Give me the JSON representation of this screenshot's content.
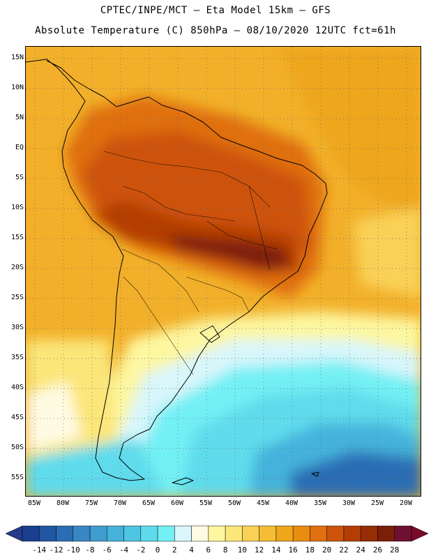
{
  "header": {
    "line1": "CPTEC/INPE/MCT —  Eta Model 15km — GFS",
    "line2": "Absolute Temperature (C) 850hPa — 08/10/2020 12UTC fct=61h"
  },
  "axes": {
    "lat_labels": [
      "15N",
      "10N",
      "5N",
      "EQ",
      "5S",
      "10S",
      "15S",
      "20S",
      "25S",
      "30S",
      "35S",
      "40S",
      "45S",
      "50S",
      "55S"
    ],
    "lat_values": [
      15,
      10,
      5,
      0,
      -5,
      -10,
      -15,
      -20,
      -25,
      -30,
      -35,
      -40,
      -45,
      -50,
      -55
    ],
    "lon_labels": [
      "85W",
      "80W",
      "75W",
      "70W",
      "65W",
      "60W",
      "55W",
      "50W",
      "45W",
      "40W",
      "35W",
      "30W",
      "25W",
      "20W"
    ],
    "lon_values": [
      -85,
      -80,
      -75,
      -70,
      -65,
      -60,
      -55,
      -50,
      -45,
      -40,
      -35,
      -30,
      -25,
      -20
    ]
  },
  "colorbar": {
    "tick_labels": [
      "-14",
      "-12",
      "-10",
      "-8",
      "-6",
      "-4",
      "-2",
      "0",
      "2",
      "4",
      "6",
      "8",
      "10",
      "12",
      "14",
      "16",
      "18",
      "20",
      "22",
      "24",
      "26",
      "28"
    ],
    "colors": [
      "#1a3f8f",
      "#2156a3",
      "#2b6db4",
      "#3a86c4",
      "#3f9ccf",
      "#44b2db",
      "#4ec6e3",
      "#5edbec",
      "#73f0f4",
      "#d8f6fb",
      "#fffbe3",
      "#fdf7a0",
      "#fbe679",
      "#f9d157",
      "#f4bd35",
      "#eea61c",
      "#e98d10",
      "#e07010",
      "#cd5309",
      "#b43d05",
      "#952d05",
      "#7a1f08",
      "#6e1030"
    ],
    "underflow_color": "#253a8c",
    "overflow_color": "#7a0a2a"
  }
}
